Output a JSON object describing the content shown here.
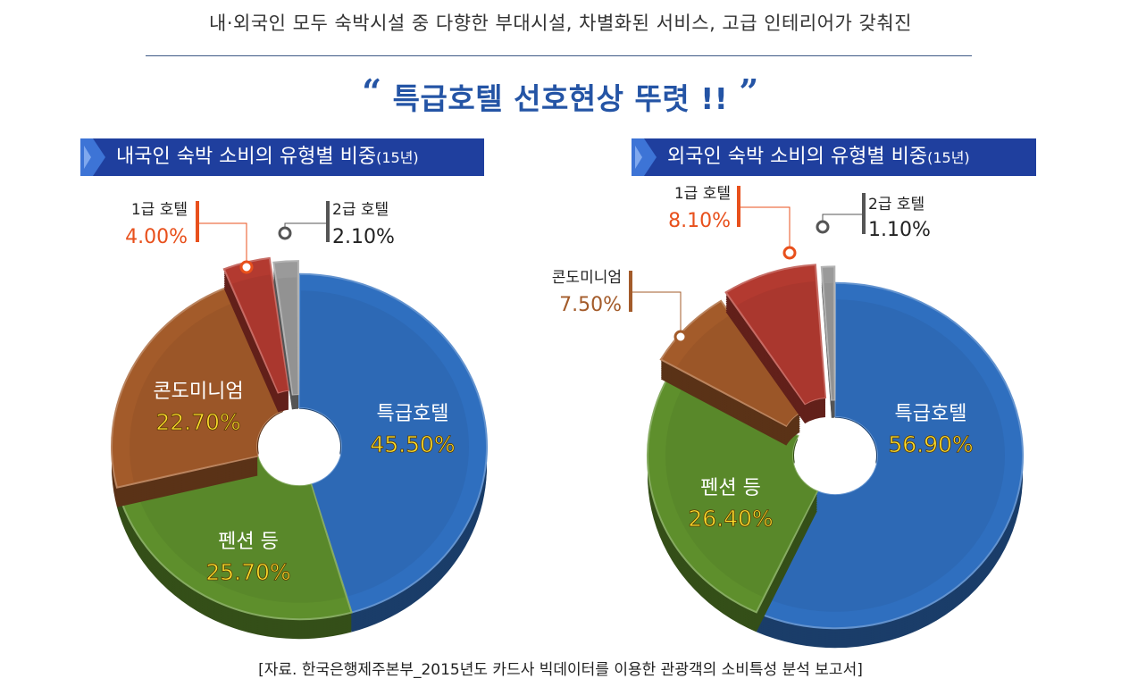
{
  "subtitle": "내·외국인 모두 숙박시설 중 다향한 부대시설, 차별화된 서비스, 고급 인테리어가 갖춰진",
  "headline": "특급호텔 선호현상 뚜렷 !!",
  "open_quote": "“",
  "close_quote": "”",
  "source": "[자료. 한국은행제주본부_2015년도 카드사 빅데이터를 이용한 관광객의 소비특성 분석 보고서]",
  "colors": {
    "특급호텔": "#2f6fbf",
    "펜션 등": "#5e8f2c",
    "콘도미니엄": "#a35b2a",
    "1급 호텔": "#b33a30",
    "2급 호텔": "#9a9a9a",
    "orange_label": "#e8501c",
    "brown_label": "#a35b2a",
    "title_bar": "#1f3f9e"
  },
  "chart_data": [
    {
      "type": "pie",
      "title": "내국인 숙박 소비의 유형별 비중",
      "title_suffix": "(15년)",
      "categories": [
        "특급호텔",
        "펜션 등",
        "콘도미니엄",
        "1급 호텔",
        "2급 호텔"
      ],
      "values": [
        45.5,
        25.7,
        22.7,
        4.0,
        2.1
      ],
      "value_labels": [
        "45.50%",
        "25.70%",
        "22.70%",
        "4.00%",
        "2.10%"
      ]
    },
    {
      "type": "pie",
      "title": "외국인 숙박 소비의 유형별 비중",
      "title_suffix": "(15년)",
      "categories": [
        "특급호텔",
        "펜션 등",
        "콘도미니엄",
        "1급 호텔",
        "2급 호텔"
      ],
      "values": [
        56.9,
        26.4,
        7.5,
        8.1,
        1.1
      ],
      "value_labels": [
        "56.90%",
        "26.40%",
        "7.50%",
        "8.10%",
        "1.10%"
      ]
    }
  ]
}
